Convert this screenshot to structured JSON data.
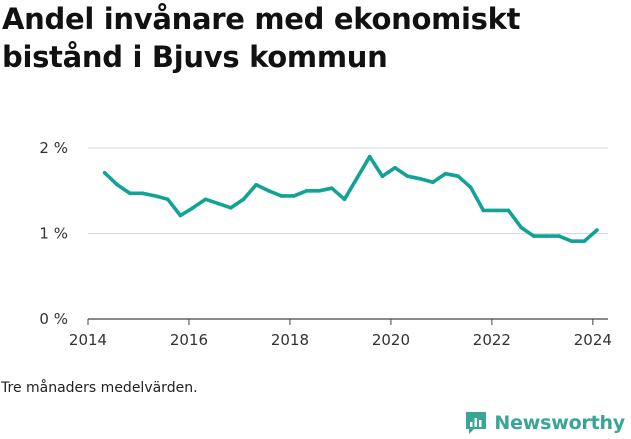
{
  "header": {
    "title": "Andel invånare med ekonomiskt bistånd i Bjuvs kommun"
  },
  "footer": {
    "note": "Tre månaders medelvärden.",
    "brand": "Newsworthy"
  },
  "colors": {
    "line": "#11a396",
    "grid": "#d9d9d9",
    "brand": "#3aa597"
  },
  "chart_data": {
    "type": "line",
    "title": "Andel invånare med ekonomiskt bistånd i Bjuvs kommun",
    "xlabel": "",
    "ylabel": "",
    "xlim": [
      2014.0,
      2024.3
    ],
    "ylim": [
      0,
      2
    ],
    "x_ticks": [
      2014,
      2016,
      2018,
      2020,
      2022,
      2024
    ],
    "y_ticks": [
      0,
      1,
      2
    ],
    "y_tick_labels": [
      "0 %",
      "1 %",
      "2 %"
    ],
    "grid": true,
    "x": [
      2014.33,
      2014.58,
      2014.83,
      2015.08,
      2015.33,
      2015.58,
      2015.83,
      2016.08,
      2016.33,
      2016.58,
      2016.83,
      2017.08,
      2017.33,
      2017.58,
      2017.83,
      2018.08,
      2018.33,
      2018.58,
      2018.83,
      2019.08,
      2019.33,
      2019.58,
      2019.83,
      2020.08,
      2020.33,
      2020.58,
      2020.83,
      2021.08,
      2021.33,
      2021.58,
      2021.83,
      2022.08,
      2022.33,
      2022.58,
      2022.83,
      2023.08,
      2023.33,
      2023.58,
      2023.83,
      2024.08
    ],
    "series": [
      {
        "values": [
          1.71,
          1.57,
          1.47,
          1.47,
          1.44,
          1.4,
          1.21,
          1.3,
          1.4,
          1.35,
          1.3,
          1.4,
          1.57,
          1.5,
          1.44,
          1.44,
          1.5,
          1.5,
          1.53,
          1.4,
          1.65,
          1.9,
          1.67,
          1.77,
          1.67,
          1.64,
          1.6,
          1.7,
          1.67,
          1.54,
          1.27,
          1.27,
          1.27,
          1.07,
          0.97,
          0.97,
          0.97,
          0.91,
          0.91,
          1.04
        ]
      }
    ]
  }
}
